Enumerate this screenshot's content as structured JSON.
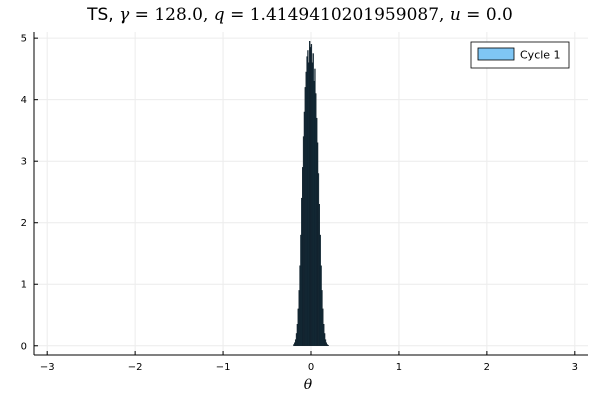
{
  "chart_data": {
    "type": "bar",
    "title_parts": {
      "prefix": "TS, ",
      "gamma_symbol": "γ",
      "gamma_value": " = 128.0, ",
      "q_symbol": "q",
      "q_value": " = 1.4149410201959087, ",
      "u_symbol": "u",
      "u_value": " = 0.0"
    },
    "xlabel": "θ",
    "ylabel": "",
    "xlim": [
      -3.15,
      3.15
    ],
    "ylim": [
      -0.15,
      5.1
    ],
    "xticks": [
      -3,
      -2,
      -1,
      0,
      1,
      2,
      3
    ],
    "xtick_labels": [
      "−3",
      "−2",
      "−1",
      "0",
      "1",
      "2",
      "3"
    ],
    "yticks": [
      0,
      1,
      2,
      3,
      4,
      5
    ],
    "ytick_labels": [
      "0",
      "1",
      "2",
      "3",
      "4",
      "5"
    ],
    "grid": true,
    "legend_position": "top-right",
    "series": [
      {
        "name": "Cycle 1",
        "color": "#7fc6f5",
        "bin_width": 0.01,
        "bins_x": [
          -0.2,
          -0.19,
          -0.18,
          -0.17,
          -0.16,
          -0.15,
          -0.14,
          -0.13,
          -0.12,
          -0.11,
          -0.1,
          -0.09,
          -0.08,
          -0.07,
          -0.06,
          -0.05,
          -0.04,
          -0.03,
          -0.02,
          -0.01,
          0.0,
          0.01,
          0.02,
          0.03,
          0.04,
          0.05,
          0.06,
          0.07,
          0.08,
          0.09,
          0.1,
          0.11,
          0.12,
          0.13,
          0.14,
          0.15,
          0.16,
          0.17,
          0.18,
          0.19
        ],
        "values": [
          0.02,
          0.05,
          0.1,
          0.2,
          0.35,
          0.6,
          0.9,
          1.3,
          1.8,
          2.4,
          2.9,
          3.4,
          3.8,
          4.2,
          4.45,
          4.7,
          4.8,
          4.6,
          4.95,
          4.85,
          4.9,
          4.6,
          4.75,
          4.3,
          4.5,
          4.1,
          3.7,
          3.3,
          2.8,
          2.3,
          1.8,
          1.3,
          0.9,
          0.6,
          0.35,
          0.2,
          0.1,
          0.05,
          0.02,
          0.01
        ]
      }
    ]
  },
  "colors": {
    "bar_fill": "#15303f",
    "bar_stroke": "#0d1b24",
    "grid": "#ececec",
    "axis": "#000000",
    "legend_swatch": "#7fc6f5"
  }
}
